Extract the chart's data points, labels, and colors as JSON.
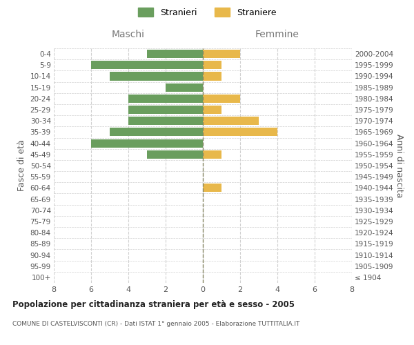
{
  "age_groups": [
    "100+",
    "95-99",
    "90-94",
    "85-89",
    "80-84",
    "75-79",
    "70-74",
    "65-69",
    "60-64",
    "55-59",
    "50-54",
    "45-49",
    "40-44",
    "35-39",
    "30-34",
    "25-29",
    "20-24",
    "15-19",
    "10-14",
    "5-9",
    "0-4"
  ],
  "birth_years": [
    "≤ 1904",
    "1905-1909",
    "1910-1914",
    "1915-1919",
    "1920-1924",
    "1925-1929",
    "1930-1934",
    "1935-1939",
    "1940-1944",
    "1945-1949",
    "1950-1954",
    "1955-1959",
    "1960-1964",
    "1965-1969",
    "1970-1974",
    "1975-1979",
    "1980-1984",
    "1985-1989",
    "1990-1994",
    "1995-1999",
    "2000-2004"
  ],
  "maschi": [
    0,
    0,
    0,
    0,
    0,
    0,
    0,
    0,
    0,
    0,
    0,
    3,
    6,
    5,
    4,
    4,
    4,
    2,
    5,
    6,
    3
  ],
  "femmine": [
    0,
    0,
    0,
    0,
    0,
    0,
    0,
    0,
    1,
    0,
    0,
    1,
    0,
    4,
    3,
    1,
    2,
    0,
    1,
    1,
    2
  ],
  "maschi_color": "#6a9e5e",
  "femmine_color": "#e8b84b",
  "title": "Popolazione per cittadinanza straniera per età e sesso - 2005",
  "subtitle": "COMUNE DI CASTELVISCONTI (CR) - Dati ISTAT 1° gennaio 2005 - Elaborazione TUTTITALIA.IT",
  "ylabel_left": "Fasce di età",
  "ylabel_right": "Anni di nascita",
  "xlabel_left": "Maschi",
  "xlabel_right": "Femmine",
  "legend_maschi": "Stranieri",
  "legend_femmine": "Straniere",
  "xlim": 8,
  "bg_color": "#ffffff",
  "grid_color": "#d0d0d0",
  "bar_height": 0.75
}
